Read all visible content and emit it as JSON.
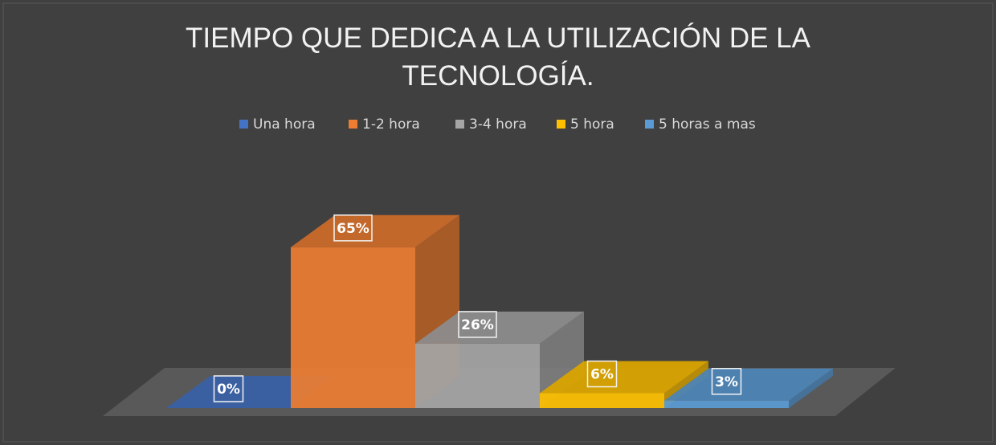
{
  "chart_data": {
    "type": "bar3d",
    "title": "TIEMPO QUE DEDICA A LA UTILIZACIÓN DE LA TECNOLOGÍA.",
    "legend": "top",
    "series": [
      {
        "name": "Una hora",
        "color": "#4472c4",
        "values": [
          0
        ],
        "value_labels": [
          "0%"
        ]
      },
      {
        "name": "1-2 hora",
        "color": "#ed7d31",
        "values": [
          65
        ],
        "value_labels": [
          "65%"
        ]
      },
      {
        "name": "3-4 hora",
        "color": "#a5a5a5",
        "values": [
          26
        ],
        "value_labels": [
          "26%"
        ]
      },
      {
        "name": "5 hora",
        "color": "#ffc000",
        "values": [
          6
        ],
        "value_labels": [
          "6%"
        ]
      },
      {
        "name": "5 horas a mas",
        "color": "#5b9bd5",
        "values": [
          3
        ],
        "value_labels": [
          "3%"
        ]
      }
    ]
  }
}
